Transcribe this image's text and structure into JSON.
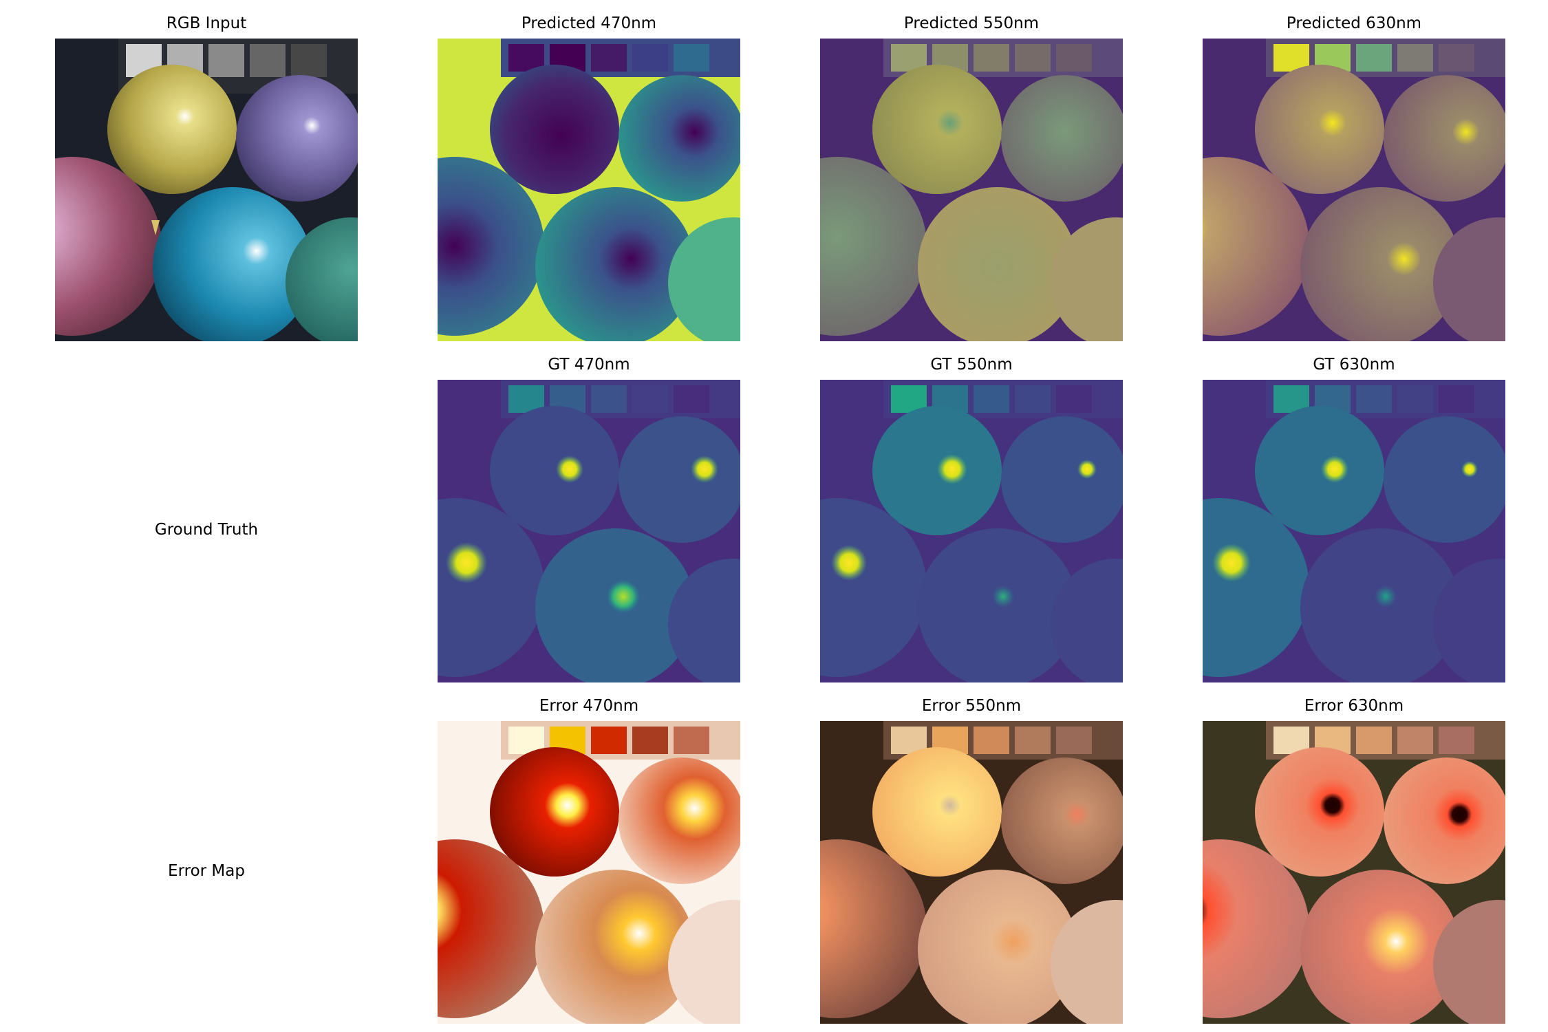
{
  "figure": {
    "panels": {
      "rgb_input": {
        "title": "RGB Input",
        "colormap": "rgb"
      },
      "pred_470": {
        "title": "Predicted 470nm",
        "colormap": "viridis"
      },
      "pred_550": {
        "title": "Predicted 550nm",
        "colormap": "viridis"
      },
      "pred_630": {
        "title": "Predicted 630nm",
        "colormap": "viridis"
      },
      "gt_470": {
        "title": "GT 470nm",
        "colormap": "viridis"
      },
      "gt_550": {
        "title": "GT 550nm",
        "colormap": "viridis"
      },
      "gt_630": {
        "title": "GT 630nm",
        "colormap": "viridis"
      },
      "err_470": {
        "title": "Error 470nm",
        "colormap": "hot"
      },
      "err_550": {
        "title": "Error 550nm",
        "colormap": "hot"
      },
      "err_630": {
        "title": "Error 630nm",
        "colormap": "hot"
      }
    },
    "row_labels": {
      "ground_truth": "Ground Truth",
      "error_map": "Error Map"
    },
    "colors": {
      "viridis_dark": "#440154",
      "viridis_mid": "#21918c",
      "viridis_bright": "#fde725",
      "hot_dark": "#3b0a00",
      "hot_mid": "#e85a1e",
      "hot_bright": "#ffffff"
    }
  }
}
